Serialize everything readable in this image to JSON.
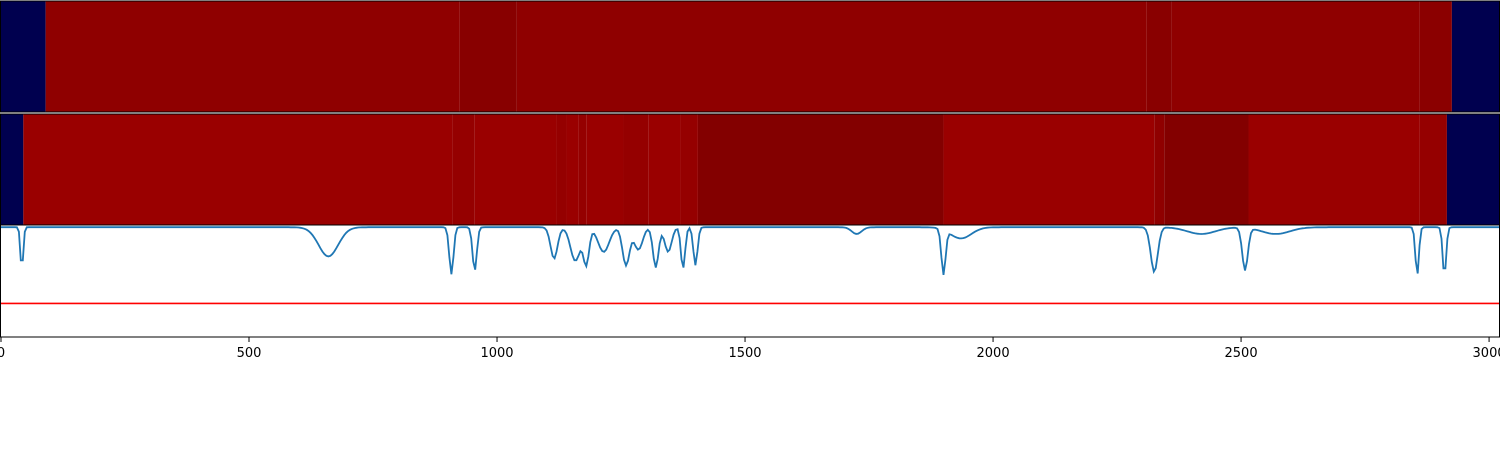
{
  "chart_data": [
    {
      "type": "heatmap",
      "x_range": [
        0,
        3020
      ],
      "segments": [
        {
          "x0": 0,
          "x1": 90,
          "value": 0.0
        },
        {
          "x0": 90,
          "x1": 925,
          "value": 0.93
        },
        {
          "x0": 925,
          "x1": 1040,
          "value": 0.88
        },
        {
          "x0": 1040,
          "x1": 2310,
          "value": 0.93
        },
        {
          "x0": 2310,
          "x1": 2360,
          "value": 0.89
        },
        {
          "x0": 2360,
          "x1": 2860,
          "value": 0.93
        },
        {
          "x0": 2860,
          "x1": 2925,
          "value": 0.9
        },
        {
          "x0": 2925,
          "x1": 3020,
          "value": 0.0
        }
      ]
    },
    {
      "type": "heatmap",
      "x_range": [
        0,
        3020
      ],
      "segments": [
        {
          "x0": 0,
          "x1": 45,
          "value": 0.0
        },
        {
          "x0": 45,
          "x1": 910,
          "value": 1.0
        },
        {
          "x0": 910,
          "x1": 955,
          "value": 0.97
        },
        {
          "x0": 955,
          "x1": 1120,
          "value": 1.0
        },
        {
          "x0": 1120,
          "x1": 1140,
          "value": 0.97
        },
        {
          "x0": 1140,
          "x1": 1165,
          "value": 1.0
        },
        {
          "x0": 1165,
          "x1": 1180,
          "value": 0.97
        },
        {
          "x0": 1180,
          "x1": 1255,
          "value": 1.0
        },
        {
          "x0": 1255,
          "x1": 1305,
          "value": 0.97
        },
        {
          "x0": 1305,
          "x1": 1370,
          "value": 1.0
        },
        {
          "x0": 1370,
          "x1": 1405,
          "value": 0.97
        },
        {
          "x0": 1405,
          "x1": 1900,
          "value": 0.85
        },
        {
          "x0": 1900,
          "x1": 2325,
          "value": 1.0
        },
        {
          "x0": 2325,
          "x1": 2345,
          "value": 0.93
        },
        {
          "x0": 2345,
          "x1": 2515,
          "value": 0.85
        },
        {
          "x0": 2515,
          "x1": 2860,
          "value": 1.0
        },
        {
          "x0": 2860,
          "x1": 2915,
          "value": 0.97
        },
        {
          "x0": 2915,
          "x1": 3020,
          "value": 0.0
        }
      ]
    },
    {
      "type": "line",
      "xlim": [
        0,
        3020
      ],
      "ylim": [
        0,
        1.0
      ],
      "xticks": [
        0,
        500,
        1000,
        1500,
        2000,
        2500,
        3000
      ],
      "threshold": 0.3,
      "threshold_color": "#ff0000",
      "line_color": "#1f77b4",
      "baseline": 0.98,
      "dips": [
        {
          "x": 42,
          "depth": 0.38,
          "width": 4
        },
        {
          "x": 660,
          "depth": 0.26,
          "width": 28
        },
        {
          "x": 908,
          "depth": 0.42,
          "width": 6
        },
        {
          "x": 955,
          "depth": 0.39,
          "width": 6
        },
        {
          "x": 1115,
          "depth": 0.28,
          "width": 10
        },
        {
          "x": 1158,
          "depth": 0.3,
          "width": 14
        },
        {
          "x": 1180,
          "depth": 0.32,
          "width": 8
        },
        {
          "x": 1215,
          "depth": 0.22,
          "width": 16
        },
        {
          "x": 1260,
          "depth": 0.34,
          "width": 10
        },
        {
          "x": 1285,
          "depth": 0.2,
          "width": 12
        },
        {
          "x": 1320,
          "depth": 0.36,
          "width": 8
        },
        {
          "x": 1345,
          "depth": 0.22,
          "width": 10
        },
        {
          "x": 1375,
          "depth": 0.37,
          "width": 6
        },
        {
          "x": 1400,
          "depth": 0.34,
          "width": 6
        },
        {
          "x": 1725,
          "depth": 0.06,
          "width": 14
        },
        {
          "x": 1900,
          "depth": 0.4,
          "width": 6
        },
        {
          "x": 1935,
          "depth": 0.1,
          "width": 30
        },
        {
          "x": 2325,
          "depth": 0.4,
          "width": 10
        },
        {
          "x": 2420,
          "depth": 0.06,
          "width": 40
        },
        {
          "x": 2508,
          "depth": 0.38,
          "width": 8
        },
        {
          "x": 2570,
          "depth": 0.06,
          "width": 40
        },
        {
          "x": 2855,
          "depth": 0.43,
          "width": 5
        },
        {
          "x": 2910,
          "depth": 0.43,
          "width": 5
        }
      ]
    }
  ],
  "colors": {
    "heatmap_low": "#00004f",
    "heatmap_high": "#9a0000",
    "axis": "#000000"
  }
}
